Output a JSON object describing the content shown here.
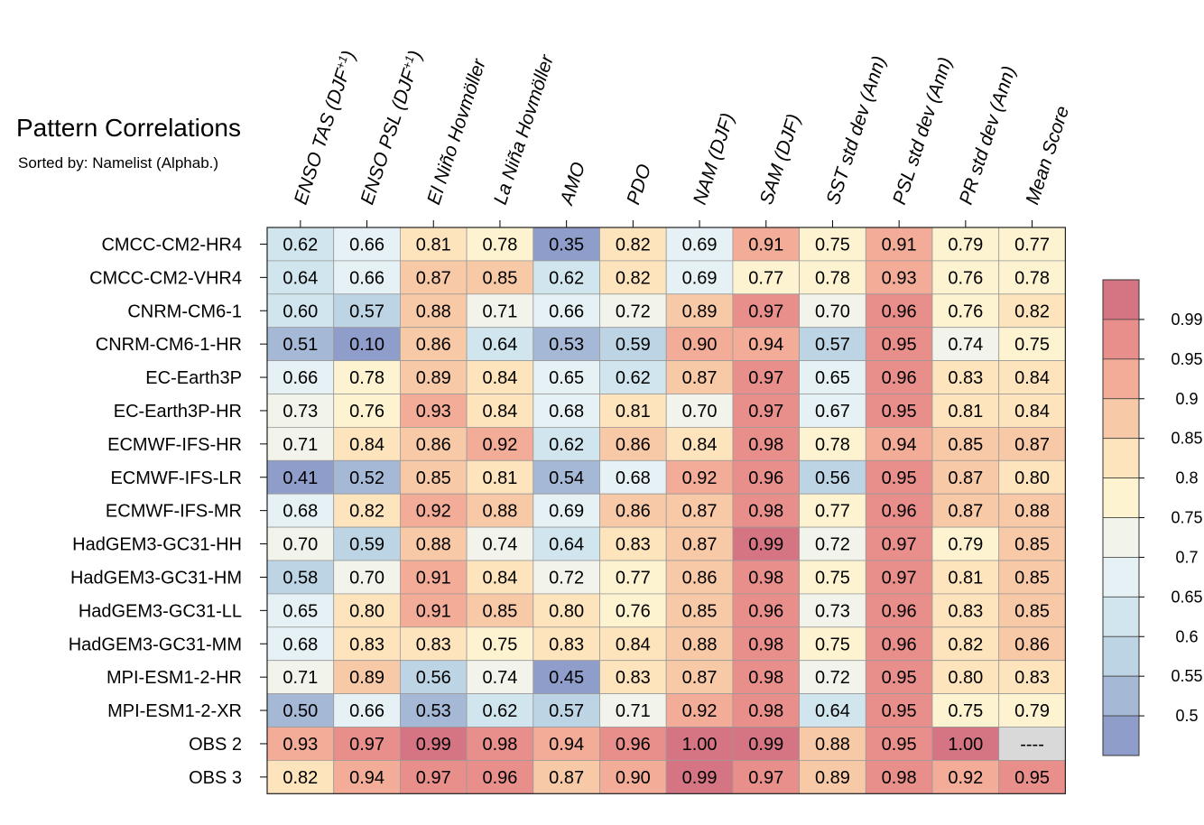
{
  "chart_data": {
    "type": "heatmap",
    "title": "Pattern Correlations",
    "subtitle": "Sorted by: Namelist (Alphab.)",
    "columns": [
      "ENSO TAS (DJF+1)",
      "ENSO PSL (DJF+1)",
      "El Niño Hovmöller",
      "La Niña Hovmöller",
      "AMO",
      "PDO",
      "NAM (DJF)",
      "SAM (DJF)",
      "SST std dev (Ann)",
      "PSL std dev (Ann)",
      "PR std dev (Ann)",
      "Mean Score"
    ],
    "rows": [
      "CMCC-CM2-HR4",
      "CMCC-CM2-VHR4",
      "CNRM-CM6-1",
      "CNRM-CM6-1-HR",
      "EC-Earth3P",
      "EC-Earth3P-HR",
      "ECMWF-IFS-HR",
      "ECMWF-IFS-LR",
      "ECMWF-IFS-MR",
      "HadGEM3-GC31-HH",
      "HadGEM3-GC31-HM",
      "HadGEM3-GC31-LL",
      "HadGEM3-GC31-MM",
      "MPI-ESM1-2-HR",
      "MPI-ESM1-2-XR",
      "OBS 2",
      "OBS 3"
    ],
    "values": [
      [
        "0.62",
        "0.66",
        "0.81",
        "0.78",
        "0.35",
        "0.82",
        "0.69",
        "0.91",
        "0.75",
        "0.91",
        "0.79",
        "0.77"
      ],
      [
        "0.64",
        "0.66",
        "0.87",
        "0.85",
        "0.62",
        "0.82",
        "0.69",
        "0.77",
        "0.78",
        "0.93",
        "0.76",
        "0.78"
      ],
      [
        "0.60",
        "0.57",
        "0.88",
        "0.71",
        "0.66",
        "0.72",
        "0.89",
        "0.97",
        "0.70",
        "0.96",
        "0.76",
        "0.82"
      ],
      [
        "0.51",
        "0.10",
        "0.86",
        "0.64",
        "0.53",
        "0.59",
        "0.90",
        "0.94",
        "0.57",
        "0.95",
        "0.74",
        "0.75"
      ],
      [
        "0.66",
        "0.78",
        "0.89",
        "0.84",
        "0.65",
        "0.62",
        "0.87",
        "0.97",
        "0.65",
        "0.96",
        "0.83",
        "0.84"
      ],
      [
        "0.73",
        "0.76",
        "0.93",
        "0.84",
        "0.68",
        "0.81",
        "0.70",
        "0.97",
        "0.67",
        "0.95",
        "0.81",
        "0.84"
      ],
      [
        "0.71",
        "0.84",
        "0.86",
        "0.92",
        "0.62",
        "0.86",
        "0.84",
        "0.98",
        "0.78",
        "0.94",
        "0.85",
        "0.87"
      ],
      [
        "0.41",
        "0.52",
        "0.85",
        "0.81",
        "0.54",
        "0.68",
        "0.92",
        "0.96",
        "0.56",
        "0.95",
        "0.87",
        "0.80"
      ],
      [
        "0.68",
        "0.82",
        "0.92",
        "0.88",
        "0.69",
        "0.86",
        "0.87",
        "0.98",
        "0.77",
        "0.96",
        "0.87",
        "0.88"
      ],
      [
        "0.70",
        "0.59",
        "0.88",
        "0.74",
        "0.64",
        "0.83",
        "0.87",
        "0.99",
        "0.72",
        "0.97",
        "0.79",
        "0.85"
      ],
      [
        "0.58",
        "0.70",
        "0.91",
        "0.84",
        "0.72",
        "0.77",
        "0.86",
        "0.98",
        "0.75",
        "0.97",
        "0.81",
        "0.85"
      ],
      [
        "0.65",
        "0.80",
        "0.91",
        "0.85",
        "0.80",
        "0.76",
        "0.85",
        "0.96",
        "0.73",
        "0.96",
        "0.83",
        "0.85"
      ],
      [
        "0.68",
        "0.83",
        "0.83",
        "0.75",
        "0.83",
        "0.84",
        "0.88",
        "0.98",
        "0.75",
        "0.96",
        "0.82",
        "0.86"
      ],
      [
        "0.71",
        "0.89",
        "0.56",
        "0.74",
        "0.45",
        "0.83",
        "0.87",
        "0.98",
        "0.72",
        "0.95",
        "0.80",
        "0.83"
      ],
      [
        "0.50",
        "0.66",
        "0.53",
        "0.62",
        "0.57",
        "0.71",
        "0.92",
        "0.98",
        "0.64",
        "0.95",
        "0.75",
        "0.79"
      ],
      [
        "0.93",
        "0.97",
        "0.99",
        "0.98",
        "0.94",
        "0.96",
        "1.00",
        "0.99",
        "0.88",
        "0.95",
        "1.00",
        "----"
      ],
      [
        "0.82",
        "0.94",
        "0.97",
        "0.96",
        "0.87",
        "0.90",
        "0.99",
        "0.97",
        "0.89",
        "0.98",
        "0.92",
        "0.95"
      ]
    ],
    "colorbar": {
      "ticks": [
        "0.5",
        "0.55",
        "0.6",
        "0.65",
        "0.7",
        "0.75",
        "0.8",
        "0.85",
        "0.9",
        "0.95",
        "0.99"
      ],
      "colors": [
        "#8f9dcb",
        "#a5b9d6",
        "#bcd4e4",
        "#d0e5ee",
        "#e5f1f4",
        "#f2f3ea",
        "#fdf3d0",
        "#fde4bc",
        "#f8c9a7",
        "#f2ac97",
        "#e88e8b",
        "#d57482"
      ],
      "missing_color": "#d9d9d9"
    }
  }
}
